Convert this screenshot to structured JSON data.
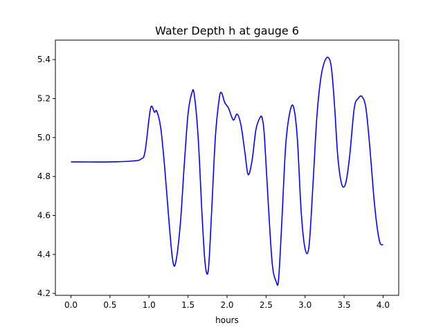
{
  "chart_data": {
    "type": "line",
    "title": "Water Depth h at gauge 6",
    "xlabel": "hours",
    "ylabel": "",
    "xlim": [
      -0.2,
      4.2
    ],
    "ylim": [
      4.19,
      5.5
    ],
    "xticks": [
      "0.0",
      "0.5",
      "1.0",
      "1.5",
      "2.0",
      "2.5",
      "3.0",
      "3.5",
      "4.0"
    ],
    "yticks": [
      "4.2",
      "4.4",
      "4.6",
      "4.8",
      "5.0",
      "5.2",
      "5.4"
    ],
    "grid": false,
    "series": [
      {
        "color": "#0000ff",
        "x": [
          0.0,
          0.5,
          0.8,
          0.9,
          0.95,
          1.02,
          1.07,
          1.1,
          1.15,
          1.2,
          1.25,
          1.3,
          1.34,
          1.4,
          1.45,
          1.5,
          1.55,
          1.58,
          1.63,
          1.68,
          1.72,
          1.76,
          1.8,
          1.85,
          1.9,
          1.93,
          1.97,
          2.02,
          2.08,
          2.13,
          2.18,
          2.23,
          2.27,
          2.32,
          2.37,
          2.42,
          2.45,
          2.48,
          2.53,
          2.58,
          2.63,
          2.66,
          2.7,
          2.75,
          2.8,
          2.85,
          2.9,
          2.95,
          3.0,
          3.05,
          3.1,
          3.15,
          3.2,
          3.25,
          3.3,
          3.34,
          3.38,
          3.42,
          3.47,
          3.52,
          3.57,
          3.63,
          3.68,
          3.73,
          3.78,
          3.83,
          3.88,
          3.92,
          3.96,
          4.0
        ],
        "y": [
          4.875,
          4.875,
          4.88,
          4.89,
          4.93,
          5.15,
          5.13,
          5.135,
          5.05,
          4.85,
          4.6,
          4.38,
          4.355,
          4.55,
          4.85,
          5.12,
          5.23,
          5.22,
          5.0,
          4.6,
          4.35,
          4.32,
          4.6,
          5.0,
          5.2,
          5.23,
          5.18,
          5.15,
          5.09,
          5.12,
          5.06,
          4.92,
          4.81,
          4.88,
          5.04,
          5.1,
          5.1,
          5.0,
          4.65,
          4.35,
          4.26,
          4.27,
          4.55,
          4.95,
          5.12,
          5.16,
          5.0,
          4.62,
          4.43,
          4.44,
          4.75,
          5.1,
          5.3,
          5.39,
          5.41,
          5.35,
          5.15,
          4.9,
          4.76,
          4.765,
          4.9,
          5.15,
          5.2,
          5.21,
          5.15,
          4.95,
          4.7,
          4.55,
          4.46,
          4.45
        ]
      }
    ]
  }
}
